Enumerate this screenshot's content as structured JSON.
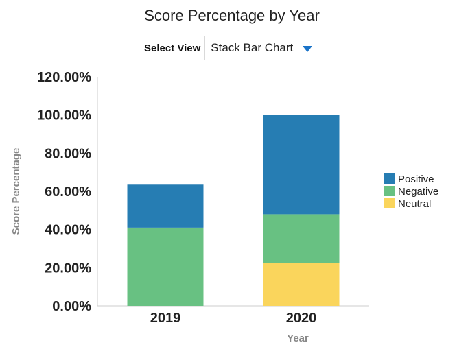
{
  "header": {
    "select_label": "Select View",
    "select_value": "Stack Bar Chart",
    "select_icon": "chevron-down-icon"
  },
  "chart_data": {
    "type": "bar",
    "stacked": true,
    "title": "Score Percentage by Year",
    "xlabel": "Year",
    "ylabel": "Score Percentage",
    "categories": [
      "2019",
      "2020"
    ],
    "ylim": [
      0,
      120
    ],
    "yticks": [
      "0.00%",
      "20.00%",
      "40.00%",
      "60.00%",
      "80.00%",
      "100.00%",
      "120.00%"
    ],
    "series": [
      {
        "name": "Neutral",
        "values": [
          0,
          22.5
        ],
        "color": "#fad55c"
      },
      {
        "name": "Negative",
        "values": [
          41,
          25.5
        ],
        "color": "#68c182"
      },
      {
        "name": "Positive",
        "values": [
          22.5,
          52
        ],
        "color": "#267db3"
      }
    ],
    "legend_order": [
      "Positive",
      "Negative",
      "Neutral"
    ],
    "legend_position": "right",
    "grid": false
  }
}
